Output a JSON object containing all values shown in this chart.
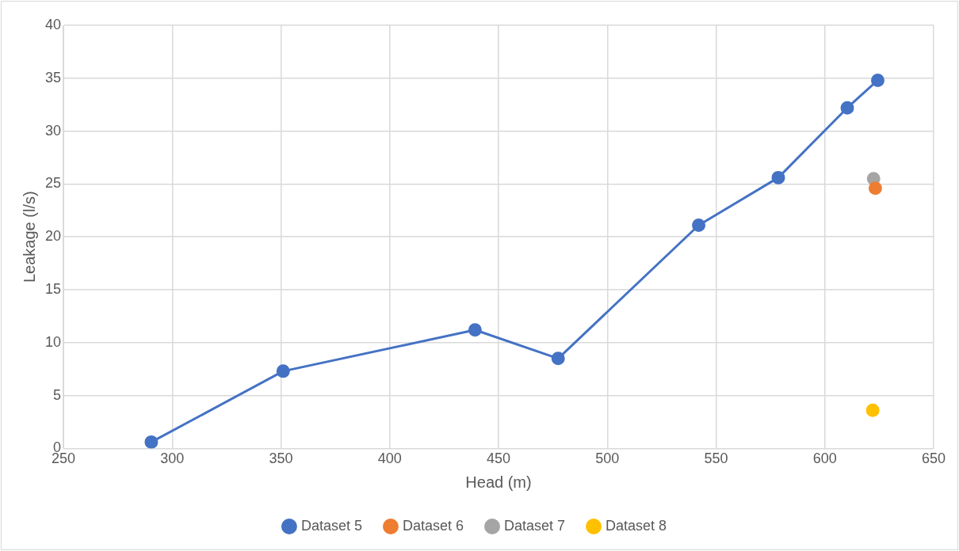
{
  "chart_data": {
    "type": "line",
    "xlabel": "Head (m)",
    "ylabel": "Leakage (l/s)",
    "xlim": [
      250,
      650
    ],
    "xticks": [
      250,
      300,
      350,
      400,
      450,
      500,
      550,
      600,
      650
    ],
    "ylim": [
      0,
      40
    ],
    "yticks": [
      0,
      5,
      10,
      15,
      20,
      25,
      30,
      35,
      40
    ],
    "grid": true,
    "legend": "bottom",
    "marker": "circle",
    "line_style": "solid",
    "series": [
      {
        "name": "Dataset 5",
        "color": "#4472c4",
        "x": [
          290.4,
          351,
          439.2,
          477.4,
          542,
          578.6,
          610.3,
          624.3
        ],
        "values": [
          0.6,
          7.3,
          11.2,
          8.5,
          21.1,
          25.6,
          32.2,
          34.8
        ]
      },
      {
        "name": "Dataset 6",
        "color": "#ed7d31",
        "x": [
          623.2
        ],
        "values": [
          24.6
        ]
      },
      {
        "name": "Dataset 7",
        "color": "#a5a5a5",
        "x": [
          622.4
        ],
        "values": [
          25.5
        ]
      },
      {
        "name": "Dataset 8",
        "color": "#ffc000",
        "x": [
          622
        ],
        "values": [
          3.6
        ]
      }
    ]
  }
}
